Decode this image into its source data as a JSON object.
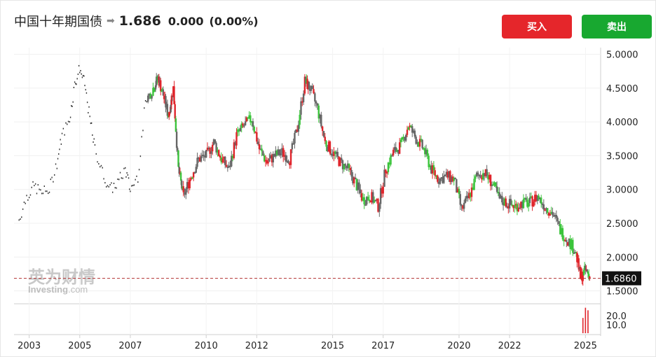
{
  "header": {
    "title": "中国十年期国债",
    "arrow_icon": "right-arrow-icon",
    "price": "1.686",
    "change": "0.000",
    "change_pct": "(0.00%)"
  },
  "buttons": {
    "buy_label": "买入",
    "sell_label": "卖出",
    "buy_color": "#e5262b",
    "sell_color": "#18a830"
  },
  "watermark": {
    "cn": "英为财情",
    "en": "Investing",
    "en_suffix": ".com"
  },
  "chart_data": {
    "type": "candlestick",
    "x_ticks": [
      "2003",
      "2005",
      "2007",
      "2010",
      "2012",
      "2015",
      "2017",
      "2020",
      "2022",
      "2025"
    ],
    "y_ticks": [
      "5.0000",
      "4.5000",
      "4.0000",
      "3.5000",
      "3.0000",
      "2.5000",
      "2.0000",
      "1.5000"
    ],
    "ylim": [
      1.5,
      5.0
    ],
    "last_value_label": "1.6860",
    "last_value": 1.686,
    "volume_ticks": [
      "20.0",
      "10.0"
    ],
    "up_color": "#3bc43b",
    "down_color": "#e0242b",
    "neutral_color": "#666666",
    "series": [
      {
        "x": 2002.6,
        "y": 2.55
      },
      {
        "x": 2002.9,
        "y": 2.9
      },
      {
        "x": 2003.2,
        "y": 3.05
      },
      {
        "x": 2003.5,
        "y": 2.95
      },
      {
        "x": 2003.8,
        "y": 3.0
      },
      {
        "x": 2004.1,
        "y": 3.4
      },
      {
        "x": 2004.3,
        "y": 3.8
      },
      {
        "x": 2004.6,
        "y": 4.05
      },
      {
        "x": 2004.8,
        "y": 4.55
      },
      {
        "x": 2005.0,
        "y": 4.8
      },
      {
        "x": 2005.2,
        "y": 4.55
      },
      {
        "x": 2005.4,
        "y": 4.05
      },
      {
        "x": 2005.6,
        "y": 3.6
      },
      {
        "x": 2005.9,
        "y": 3.25
      },
      {
        "x": 2006.2,
        "y": 3.0
      },
      {
        "x": 2006.5,
        "y": 3.1
      },
      {
        "x": 2006.8,
        "y": 3.3
      },
      {
        "x": 2007.0,
        "y": 3.0
      },
      {
        "x": 2007.3,
        "y": 3.2
      },
      {
        "x": 2007.6,
        "y": 4.3
      },
      {
        "x": 2007.9,
        "y": 4.5
      },
      {
        "x": 2008.1,
        "y": 4.65
      },
      {
        "x": 2008.3,
        "y": 4.4
      },
      {
        "x": 2008.5,
        "y": 4.1
      },
      {
        "x": 2008.7,
        "y": 4.5
      },
      {
        "x": 2008.9,
        "y": 3.3
      },
      {
        "x": 2009.1,
        "y": 2.9
      },
      {
        "x": 2009.4,
        "y": 3.2
      },
      {
        "x": 2009.7,
        "y": 3.45
      },
      {
        "x": 2010.0,
        "y": 3.5
      },
      {
        "x": 2010.3,
        "y": 3.7
      },
      {
        "x": 2010.6,
        "y": 3.45
      },
      {
        "x": 2010.9,
        "y": 3.3
      },
      {
        "x": 2011.2,
        "y": 3.8
      },
      {
        "x": 2011.5,
        "y": 3.95
      },
      {
        "x": 2011.8,
        "y": 4.05
      },
      {
        "x": 2012.1,
        "y": 3.6
      },
      {
        "x": 2012.4,
        "y": 3.4
      },
      {
        "x": 2012.7,
        "y": 3.5
      },
      {
        "x": 2013.0,
        "y": 3.55
      },
      {
        "x": 2013.3,
        "y": 3.45
      },
      {
        "x": 2013.6,
        "y": 3.9
      },
      {
        "x": 2013.9,
        "y": 4.6
      },
      {
        "x": 2014.1,
        "y": 4.5
      },
      {
        "x": 2014.4,
        "y": 4.2
      },
      {
        "x": 2014.7,
        "y": 3.7
      },
      {
        "x": 2015.0,
        "y": 3.55
      },
      {
        "x": 2015.3,
        "y": 3.4
      },
      {
        "x": 2015.6,
        "y": 3.3
      },
      {
        "x": 2015.9,
        "y": 3.1
      },
      {
        "x": 2016.2,
        "y": 2.85
      },
      {
        "x": 2016.5,
        "y": 2.9
      },
      {
        "x": 2016.8,
        "y": 2.75
      },
      {
        "x": 2017.1,
        "y": 3.3
      },
      {
        "x": 2017.4,
        "y": 3.55
      },
      {
        "x": 2017.7,
        "y": 3.65
      },
      {
        "x": 2018.0,
        "y": 3.95
      },
      {
        "x": 2018.3,
        "y": 3.75
      },
      {
        "x": 2018.6,
        "y": 3.6
      },
      {
        "x": 2018.9,
        "y": 3.3
      },
      {
        "x": 2019.2,
        "y": 3.15
      },
      {
        "x": 2019.5,
        "y": 3.2
      },
      {
        "x": 2019.8,
        "y": 3.15
      },
      {
        "x": 2020.1,
        "y": 2.7
      },
      {
        "x": 2020.4,
        "y": 2.9
      },
      {
        "x": 2020.7,
        "y": 3.2
      },
      {
        "x": 2021.0,
        "y": 3.25
      },
      {
        "x": 2021.3,
        "y": 3.1
      },
      {
        "x": 2021.6,
        "y": 2.85
      },
      {
        "x": 2021.9,
        "y": 2.8
      },
      {
        "x": 2022.2,
        "y": 2.75
      },
      {
        "x": 2022.5,
        "y": 2.8
      },
      {
        "x": 2022.8,
        "y": 2.8
      },
      {
        "x": 2023.1,
        "y": 2.9
      },
      {
        "x": 2023.4,
        "y": 2.75
      },
      {
        "x": 2023.7,
        "y": 2.65
      },
      {
        "x": 2024.0,
        "y": 2.4
      },
      {
        "x": 2024.3,
        "y": 2.25
      },
      {
        "x": 2024.6,
        "y": 2.1
      },
      {
        "x": 2024.8,
        "y": 1.7
      },
      {
        "x": 2025.0,
        "y": 1.8
      },
      {
        "x": 2025.2,
        "y": 1.69
      }
    ],
    "volume": [
      {
        "x": 2024.9,
        "v": 12
      },
      {
        "x": 2025.0,
        "v": 20
      },
      {
        "x": 2025.1,
        "v": 18
      }
    ]
  }
}
